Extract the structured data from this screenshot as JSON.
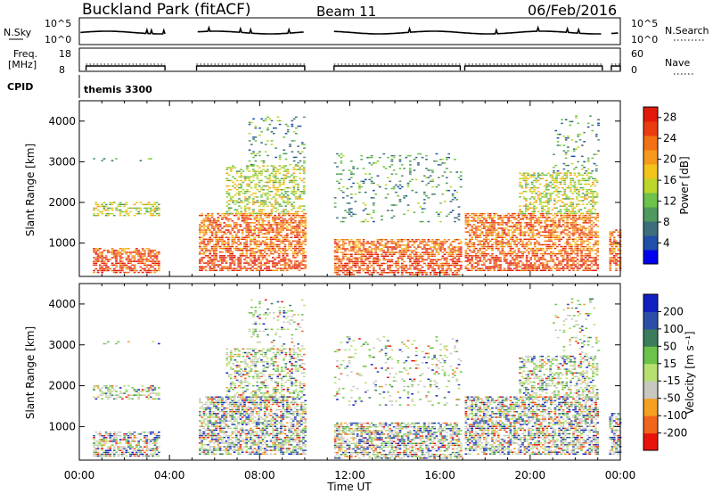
{
  "header": {
    "title": "Buckland Park (fitACF)",
    "beam": "Beam 11",
    "date": "06/Feb/2016"
  },
  "panels": {
    "nsky": {
      "label": "N.Sky",
      "ticks": [
        "10^5",
        "10^0"
      ],
      "right_label": "N.Search",
      "right_ticks": [
        "10^5",
        "10^0"
      ]
    },
    "freq": {
      "label_line1": "Freq.",
      "label_line2": "[MHz]",
      "ticks": [
        "18",
        "8"
      ],
      "right_label": "Nave",
      "right_ticks": [
        "60",
        "0"
      ]
    },
    "cpid": {
      "label": "CPID",
      "value": "themis 3300"
    }
  },
  "chart_data": [
    {
      "type": "heatmap",
      "name": "power",
      "xlabel": "Time UT",
      "ylabel": "Slant Range [km]",
      "xticks": [
        "00:00",
        "04:00",
        "08:00",
        "12:00",
        "16:00",
        "20:00",
        "00:00"
      ],
      "xlim": [
        0,
        24
      ],
      "yticks": [
        1000,
        2000,
        3000,
        4000
      ],
      "ylim": [
        180,
        4500
      ],
      "colorbar": {
        "label": "Power [dB]",
        "ticks": [
          4,
          8,
          12,
          16,
          20,
          24,
          28
        ],
        "range": [
          0,
          30
        ],
        "colors": [
          "#0000ee",
          "#1f4fa8",
          "#3d6e7c",
          "#4f9a5e",
          "#6cc24a",
          "#bdd62a",
          "#f2c41a",
          "#f59a1c",
          "#f07214",
          "#ea3c10",
          "#e21a0c"
        ]
      },
      "data_gaps": [
        [
          3.8,
          5.2
        ],
        [
          10.0,
          11.3
        ],
        [
          23.2,
          23.6
        ]
      ],
      "echo_regions": [
        {
          "t": [
            0.6,
            3.5
          ],
          "r": [
            250,
            850
          ],
          "level": "high"
        },
        {
          "t": [
            0.6,
            3.5
          ],
          "r": [
            1650,
            2000
          ],
          "level": "medium"
        },
        {
          "t": [
            0.6,
            3.5
          ],
          "r": [
            3000,
            3050
          ],
          "level": "low"
        },
        {
          "t": [
            5.3,
            10.0
          ],
          "r": [
            300,
            1700
          ],
          "level": "high"
        },
        {
          "t": [
            6.5,
            10.0
          ],
          "r": [
            1700,
            2900
          ],
          "level": "medium"
        },
        {
          "t": [
            7.5,
            10.0
          ],
          "r": [
            2900,
            4100
          ],
          "level": "low"
        },
        {
          "t": [
            11.3,
            16.9
          ],
          "r": [
            200,
            1100
          ],
          "level": "high"
        },
        {
          "t": [
            11.3,
            16.9
          ],
          "r": [
            1500,
            3200
          ],
          "level": "low"
        },
        {
          "t": [
            17.1,
            23.0
          ],
          "r": [
            300,
            1700
          ],
          "level": "high"
        },
        {
          "t": [
            19.5,
            23.0
          ],
          "r": [
            1700,
            2700
          ],
          "level": "medium"
        },
        {
          "t": [
            21.0,
            23.0
          ],
          "r": [
            2700,
            4100
          ],
          "level": "low"
        },
        {
          "t": [
            23.5,
            24.0
          ],
          "r": [
            300,
            1300
          ],
          "level": "high"
        }
      ]
    },
    {
      "type": "heatmap",
      "name": "velocity",
      "xlabel": "Time UT",
      "ylabel": "Slant Range [km]",
      "xticks": [
        "00:00",
        "04:00",
        "08:00",
        "12:00",
        "16:00",
        "20:00",
        "00:00"
      ],
      "xlim": [
        0,
        24
      ],
      "yticks": [
        1000,
        2000,
        3000,
        4000
      ],
      "ylim": [
        180,
        4500
      ],
      "colorbar": {
        "label": "Velocity [m s⁻¹]",
        "ticks": [
          -200,
          -100,
          -50,
          -15,
          15,
          50,
          100,
          200
        ],
        "colors": [
          "#e8140c",
          "#f0641c",
          "#f5a020",
          "#c8c8c0",
          "#b8e070",
          "#6cc24a",
          "#3a7c5c",
          "#2c4ea8",
          "#1020c0"
        ]
      }
    }
  ],
  "colors": {
    "panel_border": "#000000",
    "background": "#ffffff"
  }
}
